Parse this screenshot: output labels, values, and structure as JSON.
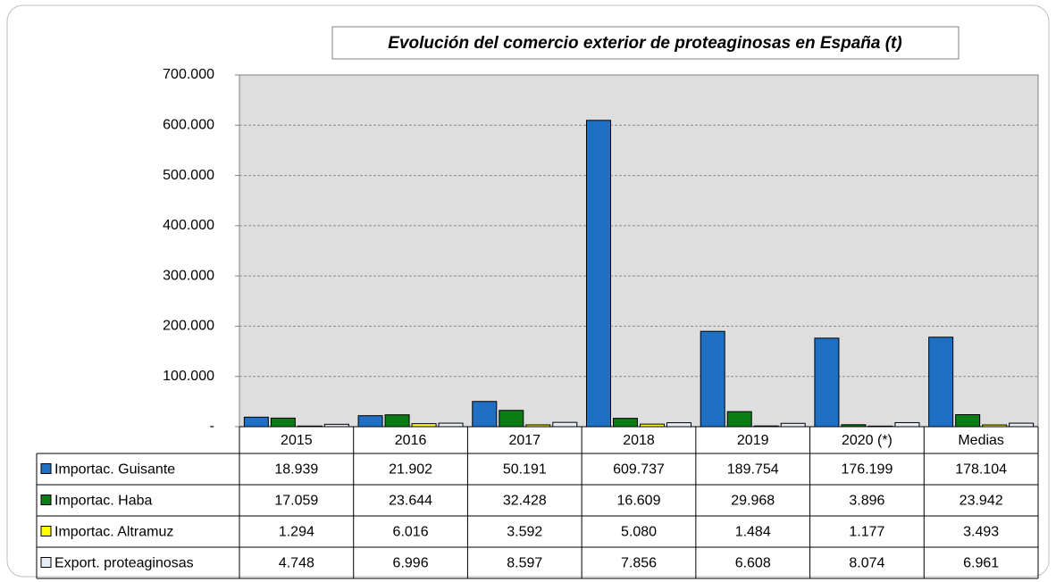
{
  "chart_data": {
    "type": "bar",
    "title": "Evolución del comercio exterior de proteaginosas en España (t)",
    "categories": [
      "2015",
      "2016",
      "2017",
      "2018",
      "2019",
      "2020 (*)",
      "Medias"
    ],
    "series": [
      {
        "name": "Importac. Guisante",
        "color": "#1f6fc5",
        "values": [
          18939,
          21902,
          50191,
          609737,
          189754,
          176199,
          178104
        ],
        "value_labels": [
          "18.939",
          "21.902",
          "50.191",
          "609.737",
          "189.754",
          "176.199",
          "178.104"
        ]
      },
      {
        "name": "Importac. Haba",
        "color": "#0b7d14",
        "values": [
          17059,
          23644,
          32428,
          16609,
          29968,
          3896,
          23942
        ],
        "value_labels": [
          "17.059",
          "23.644",
          "32.428",
          "16.609",
          "29.968",
          "3.896",
          "23.942"
        ]
      },
      {
        "name": "Importac. Altramuz",
        "color": "#ffff00",
        "values": [
          1294,
          6016,
          3592,
          5080,
          1484,
          1177,
          3493
        ],
        "value_labels": [
          "1.294",
          "6.016",
          "3.592",
          "5.080",
          "1.484",
          "1.177",
          "3.493"
        ]
      },
      {
        "name": "Export. proteaginosas",
        "color": "#e6edf8",
        "values": [
          4748,
          6996,
          8597,
          7856,
          6608,
          8074,
          6961
        ],
        "value_labels": [
          "4.748",
          "6.996",
          "8.597",
          "7.856",
          "6.608",
          "8.074",
          "6.961"
        ]
      }
    ],
    "ylim": [
      0,
      700000
    ],
    "yticks": [
      {
        "value": 0,
        "label": "-"
      },
      {
        "value": 100000,
        "label": "100.000"
      },
      {
        "value": 200000,
        "label": "200.000"
      },
      {
        "value": 300000,
        "label": "300.000"
      },
      {
        "value": 400000,
        "label": "400.000"
      },
      {
        "value": 500000,
        "label": "500.000"
      },
      {
        "value": 600000,
        "label": "600.000"
      },
      {
        "value": 700000,
        "label": "700.000"
      }
    ],
    "grid": true
  }
}
